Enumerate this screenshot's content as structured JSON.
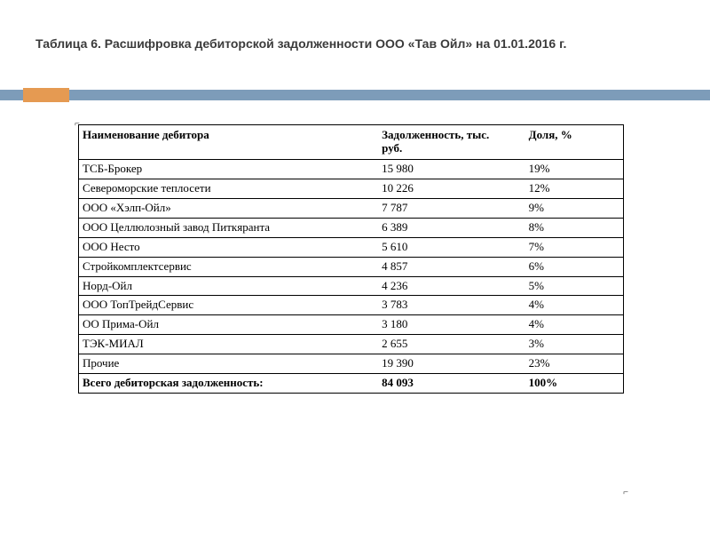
{
  "title": "Таблица 6. Расшифровка дебиторской задолженности ООО «Тав Ойл» на 01.01.2016 г.",
  "table": {
    "type": "table",
    "columns": [
      {
        "label": "Наименование дебитора",
        "width_pct": 55,
        "align": "left"
      },
      {
        "label": "Задолженность, тыс. руб.",
        "width_pct": 27,
        "align": "left"
      },
      {
        "label": "Доля, %",
        "width_pct": 18,
        "align": "left"
      }
    ],
    "rows": [
      {
        "name": "ТСБ-Брокер",
        "debt": "15 980",
        "share": "19%"
      },
      {
        "name": "Североморские теплосети",
        "debt": "10 226",
        "share": "12%"
      },
      {
        "name": "ООО «Хэлп-Ойл»",
        "debt": "7 787",
        "share": "9%"
      },
      {
        "name": "ООО Целлюлозный завод Питкяранта",
        "debt": "6 389",
        "share": "8%"
      },
      {
        "name": "ООО Несто",
        "debt": "5 610",
        "share": "7%"
      },
      {
        "name": "Стройкомплектсервис",
        "debt": "4 857",
        "share": "6%"
      },
      {
        "name": "Норд-Ойл",
        "debt": "4 236",
        "share": "5%"
      },
      {
        "name": "ООО ТопТрейдСервис",
        "debt": "3 783",
        "share": "4%"
      },
      {
        "name": "ОО Прима-Ойл",
        "debt": "3 180",
        "share": "4%"
      },
      {
        "name": "ТЭК-МИАЛ",
        "debt": "2 655",
        "share": "3%"
      },
      {
        "name": "Прочие",
        "debt": "19 390",
        "share": "23%"
      }
    ],
    "total": {
      "name": "Всего дебиторская задолженность:",
      "debt": "84 093",
      "share": "100%"
    },
    "border_color": "#000000",
    "font_family": "Times New Roman",
    "header_fontweight": "bold",
    "body_fontsize_pt": 10
  },
  "accent": {
    "bar_color": "#7d9cb9",
    "block_color": "#e59a52"
  },
  "background_color": "#ffffff",
  "title_color": "#3b3b3b",
  "title_font": "Verdana",
  "title_fontsize_pt": 11,
  "corner_mark": "⌐"
}
